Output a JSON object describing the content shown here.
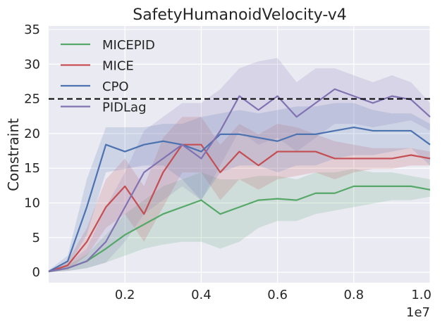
{
  "chart_data": {
    "type": "line",
    "title": "SafetyHumanoidVelocity-v4",
    "xlabel": "",
    "ylabel": "Constraint",
    "x_scale_label": "1e7",
    "xlim": [
      0,
      1.0
    ],
    "ylim": [
      -1.5,
      35.5
    ],
    "xticks": [
      0.2,
      0.4,
      0.6,
      0.8,
      1.0
    ],
    "xtick_labels": [
      "0.2",
      "0.4",
      "0.6",
      "0.8",
      "1.0"
    ],
    "yticks": [
      0,
      5,
      10,
      15,
      20,
      25,
      30,
      35
    ],
    "ytick_labels": [
      "0",
      "5",
      "10",
      "15",
      "20",
      "25",
      "30",
      "35"
    ],
    "grid": true,
    "legend_position": "top-left",
    "threshold": {
      "y": 25,
      "style": "dashed",
      "color": "#000000"
    },
    "x": [
      0.0,
      0.05,
      0.1,
      0.15,
      0.2,
      0.25,
      0.3,
      0.35,
      0.4,
      0.45,
      0.5,
      0.55,
      0.6,
      0.65,
      0.7,
      0.75,
      0.8,
      0.85,
      0.9,
      0.95,
      1.0
    ],
    "series": [
      {
        "name": "MICEPID",
        "color": "#55a868",
        "values": [
          0.1,
          0.6,
          1.6,
          3.4,
          5.4,
          6.9,
          8.4,
          9.4,
          10.4,
          8.4,
          9.4,
          10.4,
          10.6,
          10.4,
          11.4,
          11.4,
          12.4,
          12.4,
          12.4,
          12.4,
          11.9
        ],
        "lower": [
          0.0,
          0.2,
          0.6,
          1.4,
          2.4,
          3.4,
          4.0,
          4.4,
          4.4,
          3.4,
          4.4,
          6.4,
          7.4,
          7.4,
          8.4,
          8.9,
          9.4,
          9.9,
          10.4,
          10.4,
          10.9
        ],
        "upper": [
          0.3,
          1.0,
          2.6,
          5.4,
          8.4,
          10.4,
          12.4,
          13.4,
          14.4,
          13.4,
          13.4,
          13.9,
          13.9,
          13.4,
          14.4,
          14.4,
          14.9,
          14.4,
          14.4,
          13.9,
          13.4
        ]
      },
      {
        "name": "MICE",
        "color": "#c44e52",
        "values": [
          0.1,
          1.0,
          4.4,
          9.4,
          12.4,
          8.4,
          14.4,
          18.4,
          18.4,
          14.4,
          17.4,
          15.4,
          17.4,
          17.4,
          17.4,
          16.4,
          16.4,
          16.4,
          16.4,
          16.9,
          16.4
        ],
        "lower": [
          0.0,
          0.4,
          2.4,
          6.4,
          8.4,
          4.4,
          9.4,
          14.4,
          14.4,
          10.4,
          13.4,
          11.9,
          13.4,
          13.9,
          14.4,
          13.4,
          14.4,
          14.9,
          14.9,
          15.4,
          15.4
        ],
        "upper": [
          0.3,
          1.6,
          6.4,
          13.4,
          16.4,
          12.4,
          19.4,
          22.4,
          22.4,
          18.4,
          21.4,
          19.9,
          21.4,
          20.9,
          19.9,
          18.9,
          18.4,
          17.9,
          17.9,
          17.9,
          17.4
        ]
      },
      {
        "name": "CPO",
        "color": "#4c72b0",
        "values": [
          0.1,
          1.6,
          9.4,
          18.4,
          17.4,
          18.4,
          18.9,
          18.4,
          17.4,
          19.9,
          19.9,
          19.4,
          18.9,
          19.9,
          19.9,
          20.4,
          20.9,
          20.4,
          20.4,
          20.4,
          18.4
        ],
        "lower": [
          0.0,
          0.8,
          5.4,
          14.4,
          14.9,
          15.4,
          15.4,
          13.4,
          10.4,
          14.4,
          15.4,
          15.4,
          14.4,
          15.4,
          15.4,
          16.4,
          16.9,
          16.9,
          17.4,
          17.9,
          15.4
        ],
        "upper": [
          0.3,
          2.4,
          13.4,
          20.9,
          20.9,
          20.9,
          21.4,
          21.4,
          22.4,
          22.9,
          23.4,
          22.9,
          23.4,
          23.9,
          23.9,
          24.4,
          24.4,
          23.4,
          22.9,
          22.9,
          21.4
        ]
      },
      {
        "name": "PIDLag",
        "color": "#8172b2",
        "values": [
          0.1,
          0.6,
          1.6,
          4.4,
          9.4,
          14.4,
          16.4,
          18.4,
          16.4,
          20.4,
          25.4,
          23.4,
          25.4,
          22.4,
          24.4,
          26.4,
          25.4,
          24.4,
          25.4,
          24.9,
          22.4
        ],
        "lower": [
          0.0,
          0.2,
          0.6,
          1.4,
          4.4,
          8.4,
          10.4,
          12.4,
          10.4,
          15.4,
          20.4,
          18.4,
          19.4,
          17.4,
          19.4,
          21.4,
          21.4,
          20.9,
          21.4,
          21.9,
          20.4
        ],
        "upper": [
          0.3,
          1.2,
          3.4,
          9.4,
          14.4,
          20.4,
          22.4,
          24.4,
          24.4,
          26.4,
          29.4,
          30.4,
          30.9,
          27.4,
          29.4,
          29.4,
          28.4,
          27.4,
          28.4,
          27.4,
          24.4
        ]
      }
    ]
  }
}
